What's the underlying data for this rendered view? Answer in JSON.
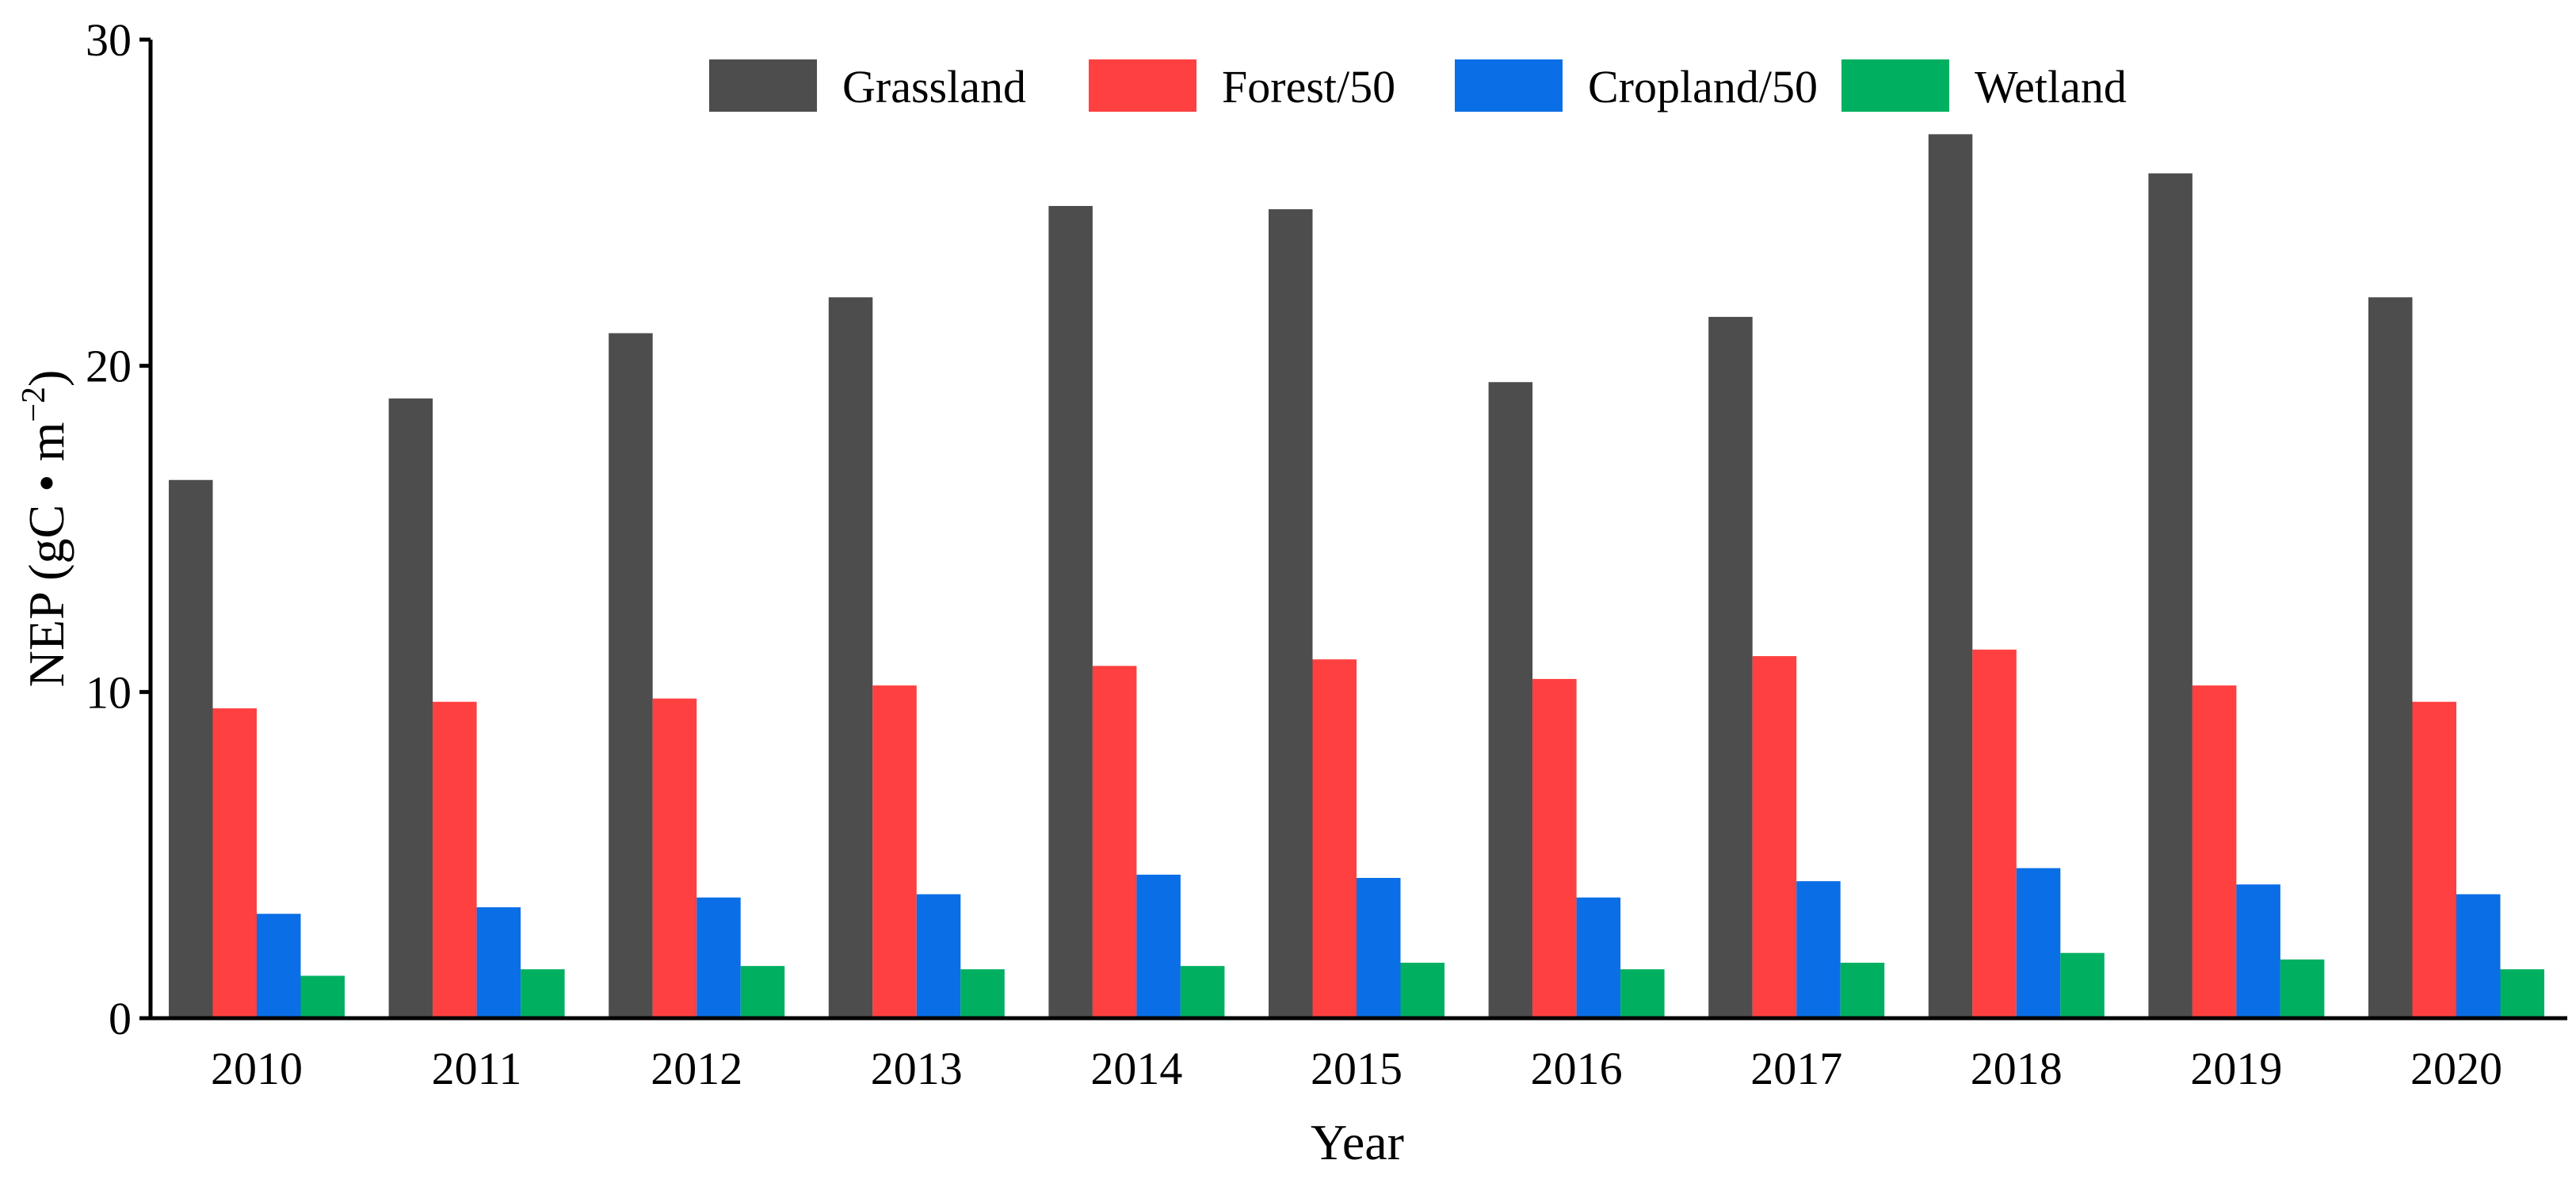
{
  "chart_data": {
    "type": "bar",
    "title": "",
    "xlabel": "Year",
    "ylabel": "NEP (gC • m",
    "ylabel_sup": "−2",
    "ylabel_close": ")",
    "ylim": [
      0,
      30
    ],
    "yticks": [
      0,
      10,
      20,
      30
    ],
    "grid": false,
    "legend_position": "top",
    "categories": [
      "2010",
      "2011",
      "2012",
      "2013",
      "2014",
      "2015",
      "2016",
      "2017",
      "2018",
      "2019",
      "2020"
    ],
    "series": [
      {
        "name": "Grassland",
        "color": "#4d4d4d",
        "values": [
          16.5,
          19.0,
          21.0,
          22.1,
          24.9,
          24.8,
          19.5,
          21.5,
          27.1,
          25.9,
          22.1
        ]
      },
      {
        "name": "Forest/50",
        "color": "#ff4040",
        "values": [
          9.5,
          9.7,
          9.8,
          10.2,
          10.8,
          11.0,
          10.4,
          11.1,
          11.3,
          10.2,
          9.7
        ]
      },
      {
        "name": "Cropland/50",
        "color": "#0a6ee6",
        "values": [
          3.2,
          3.4,
          3.7,
          3.8,
          4.4,
          4.3,
          3.7,
          4.2,
          4.6,
          4.1,
          3.8
        ]
      },
      {
        "name": "Wetland",
        "color": "#00b060",
        "values": [
          1.3,
          1.5,
          1.6,
          1.5,
          1.6,
          1.7,
          1.5,
          1.7,
          2.0,
          1.8,
          1.5
        ]
      }
    ]
  }
}
